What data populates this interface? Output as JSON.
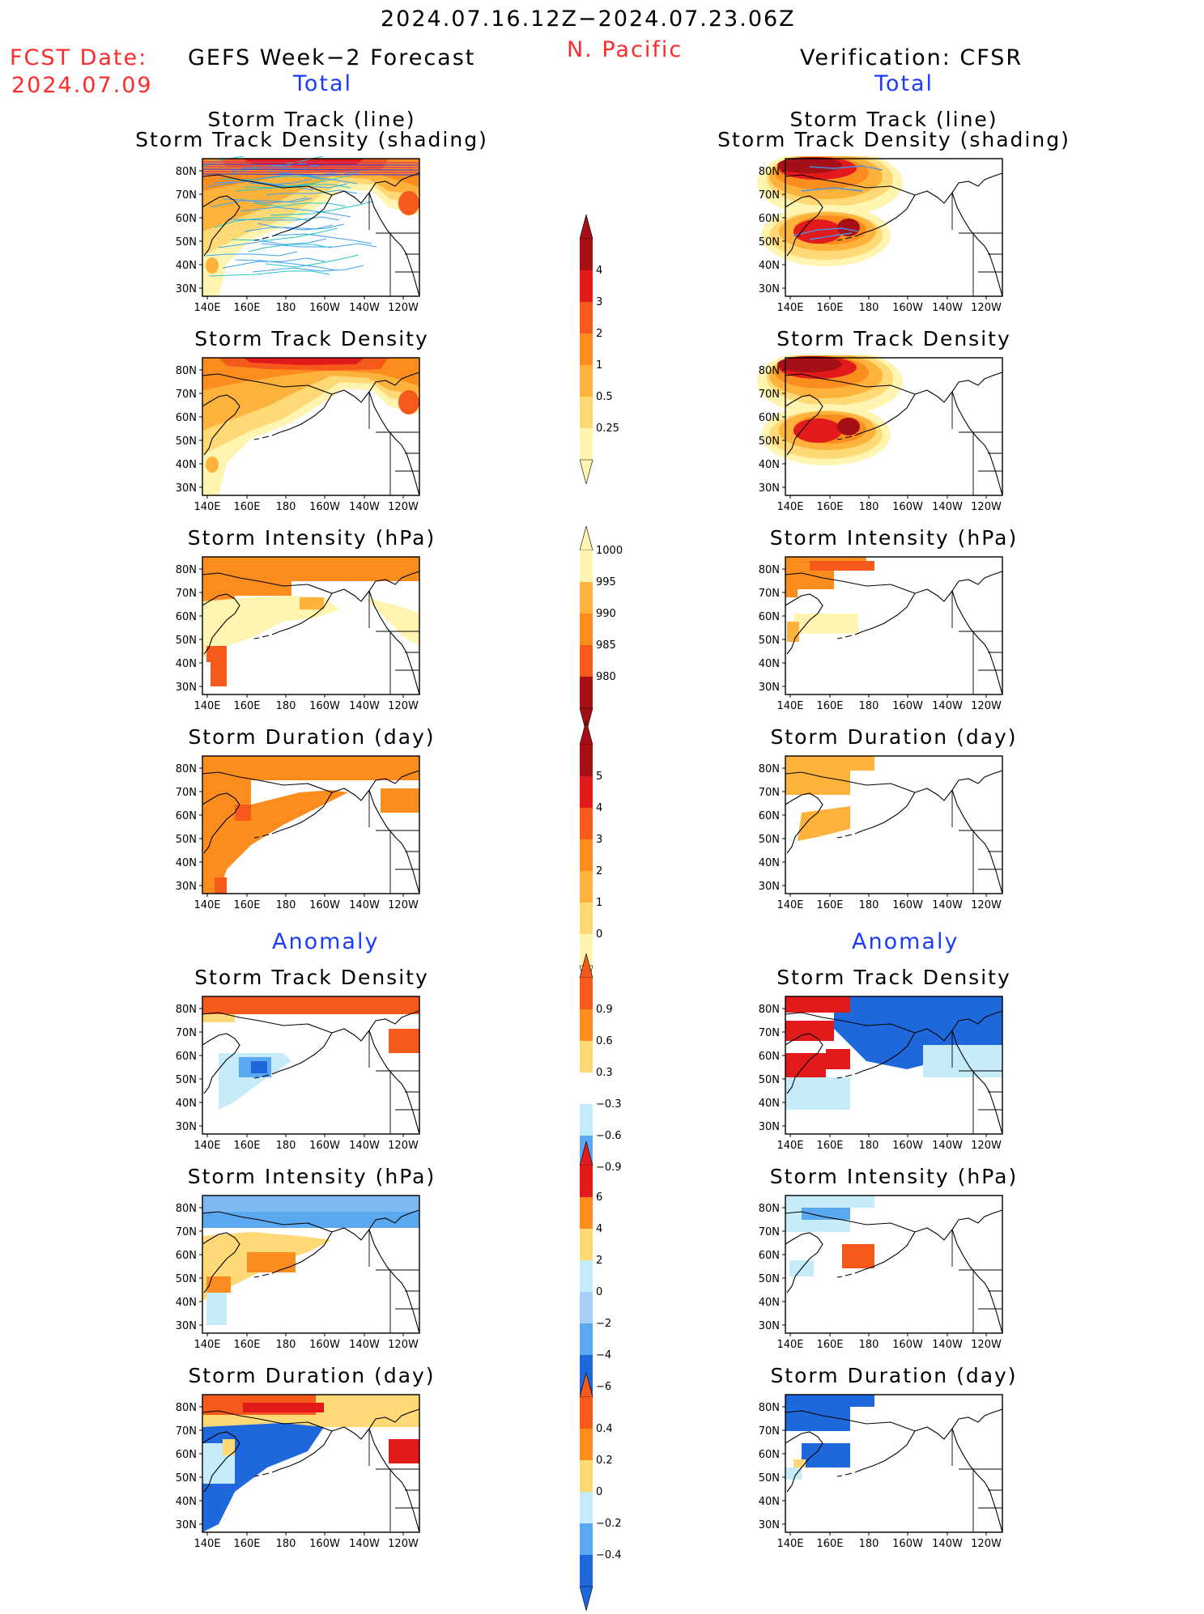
{
  "header": {
    "period": "2024.07.16.12Z−2024.07.23.06Z",
    "region": "N. Pacific",
    "fcst_label": "FCST Date:",
    "fcst_date": "2024.07.09",
    "left_title": "GEFS Week−2 Forecast",
    "right_title": "Verification: CFSR",
    "left_sub": "Total",
    "right_sub": "Total",
    "anomaly_left": "Anomaly",
    "anomaly_right": "Anomaly"
  },
  "panels": {
    "track_title_1": "Storm Track (line)",
    "track_title_2": "Storm Track Density (shading)",
    "density": "Storm Track Density",
    "intensity": "Storm Intensity (hPa)",
    "duration": "Storm Duration (day)"
  },
  "axes": {
    "lat": [
      "80N",
      "70N",
      "60N",
      "50N",
      "40N",
      "30N"
    ],
    "lon": [
      "140E",
      "160E",
      "180",
      "160W",
      "140W",
      "120W"
    ]
  },
  "colorbars": {
    "density": [
      "4",
      "3",
      "2",
      "1",
      "0.5",
      "0.25"
    ],
    "intensity": [
      "1000",
      "995",
      "990",
      "985",
      "980"
    ],
    "duration": [
      "5",
      "4",
      "3",
      "2",
      "1",
      "0"
    ],
    "density_anom": [
      "0.9",
      "0.6",
      "0.3",
      "−0.3",
      "−0.6",
      "−0.9"
    ],
    "intensity_anom": [
      "6",
      "4",
      "2",
      "0",
      "−2",
      "−4",
      "−6"
    ],
    "duration_anom": [
      "0.4",
      "0.2",
      "0",
      "−0.2",
      "−0.4"
    ]
  },
  "colors": {
    "dark_red": "#a50f15",
    "red": "#e31a1c",
    "orange_red": "#f55a1a",
    "orange": "#fb8c1e",
    "light_orange": "#fdb33b",
    "yellow": "#fed976",
    "pale_yellow": "#fff5b0",
    "light_blue": "#c6ecfa",
    "mid_blue": "#5aa8f0",
    "blue": "#1f68dc"
  }
}
